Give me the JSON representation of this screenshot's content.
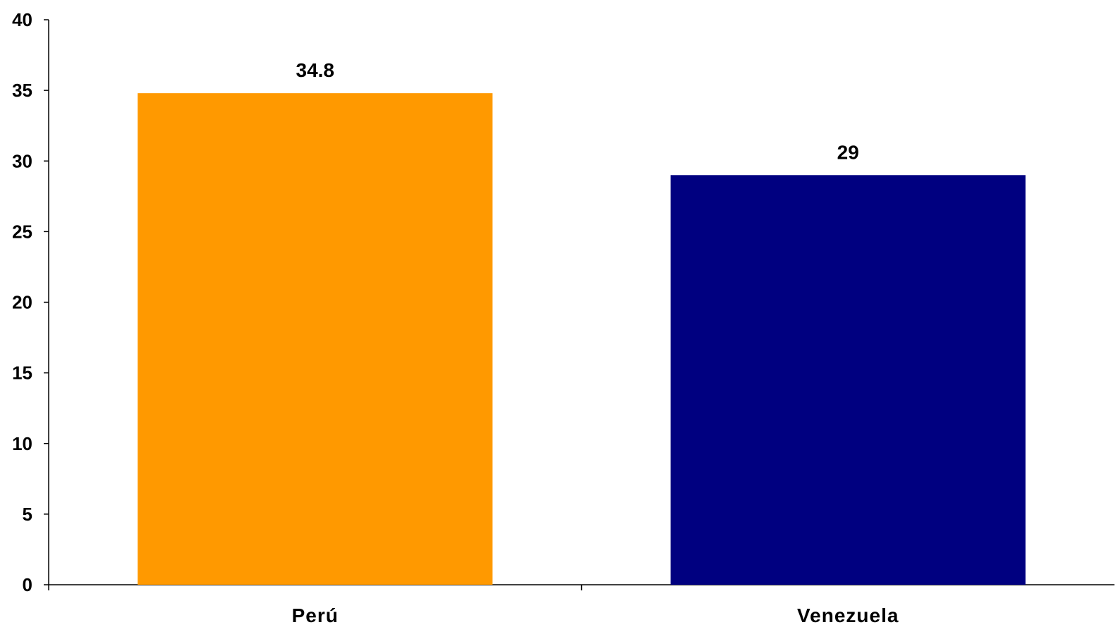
{
  "chart_data": {
    "type": "bar",
    "categories": [
      "Perú",
      "Venezuela"
    ],
    "values": [
      34.8,
      29
    ],
    "data_labels": [
      "34.8",
      "29"
    ],
    "colors": [
      "#FF9900",
      "#000080"
    ],
    "title": "",
    "xlabel": "",
    "ylabel": "",
    "ylim": [
      0,
      40
    ],
    "yticks": [
      0,
      5,
      10,
      15,
      20,
      25,
      30,
      35,
      40
    ],
    "grid": false,
    "legend": "none"
  }
}
